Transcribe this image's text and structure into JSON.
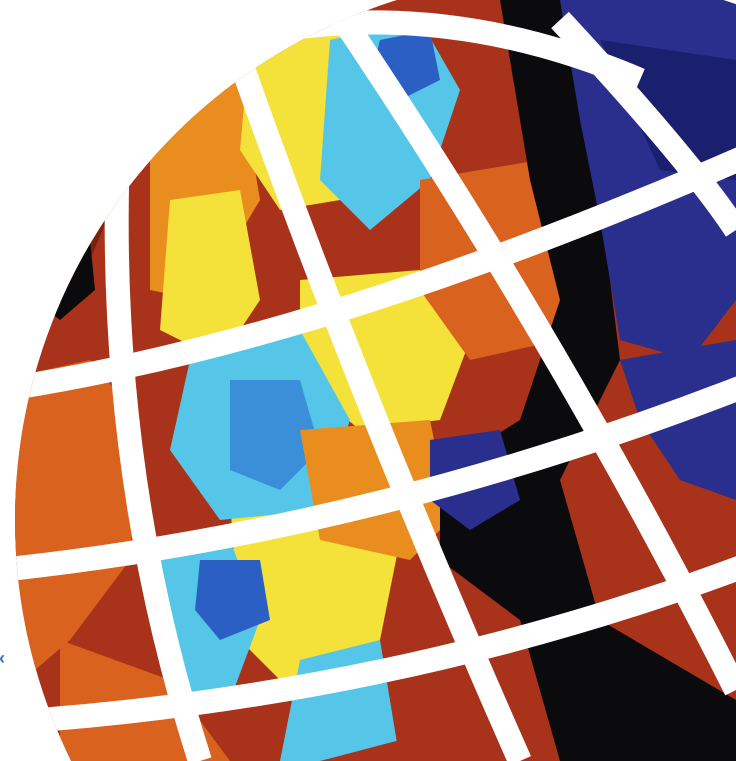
{
  "image": {
    "subject": "globe",
    "colors": {
      "background": "#ffffff",
      "grid": "#ffffff",
      "black": "#0b0b0d",
      "dark_red": "#7a2110",
      "red": "#a8321a",
      "orange": "#d9621e",
      "amber": "#ea8d1f",
      "yellow": "#f4e23a",
      "cyan": "#55c6e8",
      "light_blue": "#3b8fd8",
      "blue": "#2c5fc4",
      "navy": "#2a2e8c",
      "deep_navy": "#1a1f6e"
    }
  },
  "edge_mark": "‹"
}
